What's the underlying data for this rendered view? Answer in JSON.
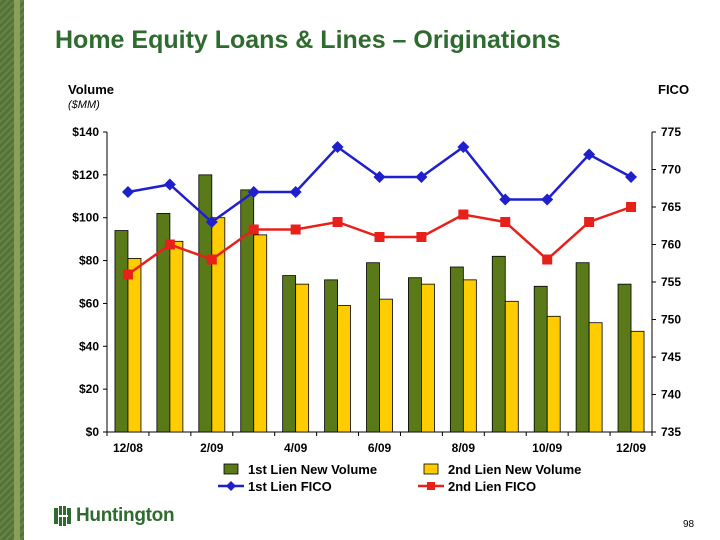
{
  "header": {
    "title": "Home Equity Loans & Lines – Originations",
    "left_axis_title": "Volume",
    "left_axis_unit": "($MM)",
    "right_axis_title": "FICO"
  },
  "footer": {
    "logo_text": "Huntington",
    "page_number": "98"
  },
  "colors": {
    "brand_green": "#2e6b2e",
    "bar_1st": "#5a7a1a",
    "bar_2nd": "#ffcc00",
    "line_1st": "#1f1fcc",
    "line_2nd": "#e8201a"
  },
  "chart_data": {
    "type": "bar",
    "x": [
      "12/08",
      "1/09",
      "2/09",
      "3/09",
      "4/09",
      "5/09",
      "6/09",
      "7/09",
      "8/09",
      "9/09",
      "10/09",
      "11/09",
      "12/09"
    ],
    "x_tick_labels": [
      "12/08",
      "2/09",
      "4/09",
      "6/09",
      "8/09",
      "10/09",
      "12/09"
    ],
    "y_left": {
      "range": [
        0,
        140
      ],
      "ticks": [
        "$0",
        "$20",
        "$40",
        "$60",
        "$80",
        "$100",
        "$120",
        "$140"
      ]
    },
    "y_right": {
      "range": [
        735,
        775
      ],
      "ticks": [
        "735",
        "740",
        "745",
        "750",
        "755",
        "760",
        "765",
        "770",
        "775"
      ]
    },
    "bars": [
      {
        "name": "1st Lien New Volume",
        "axis": "left",
        "color": "#5a7a1a",
        "values": [
          94,
          102,
          120,
          113,
          73,
          71,
          79,
          72,
          77,
          82,
          68,
          79,
          69
        ]
      },
      {
        "name": "2nd Lien New Volume",
        "axis": "left",
        "color": "#ffcc00",
        "values": [
          81,
          89,
          100,
          92,
          69,
          59,
          62,
          69,
          71,
          61,
          54,
          51,
          47
        ]
      }
    ],
    "lines": [
      {
        "name": "1st Lien FICO",
        "axis": "right",
        "color": "#1f1fcc",
        "marker": "diamond",
        "values": [
          767,
          768,
          763,
          767,
          767,
          773,
          769,
          769,
          773,
          766,
          766,
          772,
          769
        ]
      },
      {
        "name": "2nd Lien FICO",
        "axis": "right",
        "color": "#e8201a",
        "marker": "square",
        "values": [
          756,
          760,
          758,
          762,
          762,
          763,
          761,
          761,
          764,
          763,
          758,
          763,
          765
        ]
      }
    ],
    "legend": [
      "1st Lien New Volume",
      "2nd Lien New Volume",
      "1st Lien FICO",
      "2nd Lien FICO"
    ],
    "legend_position": "bottom",
    "grid": false
  }
}
